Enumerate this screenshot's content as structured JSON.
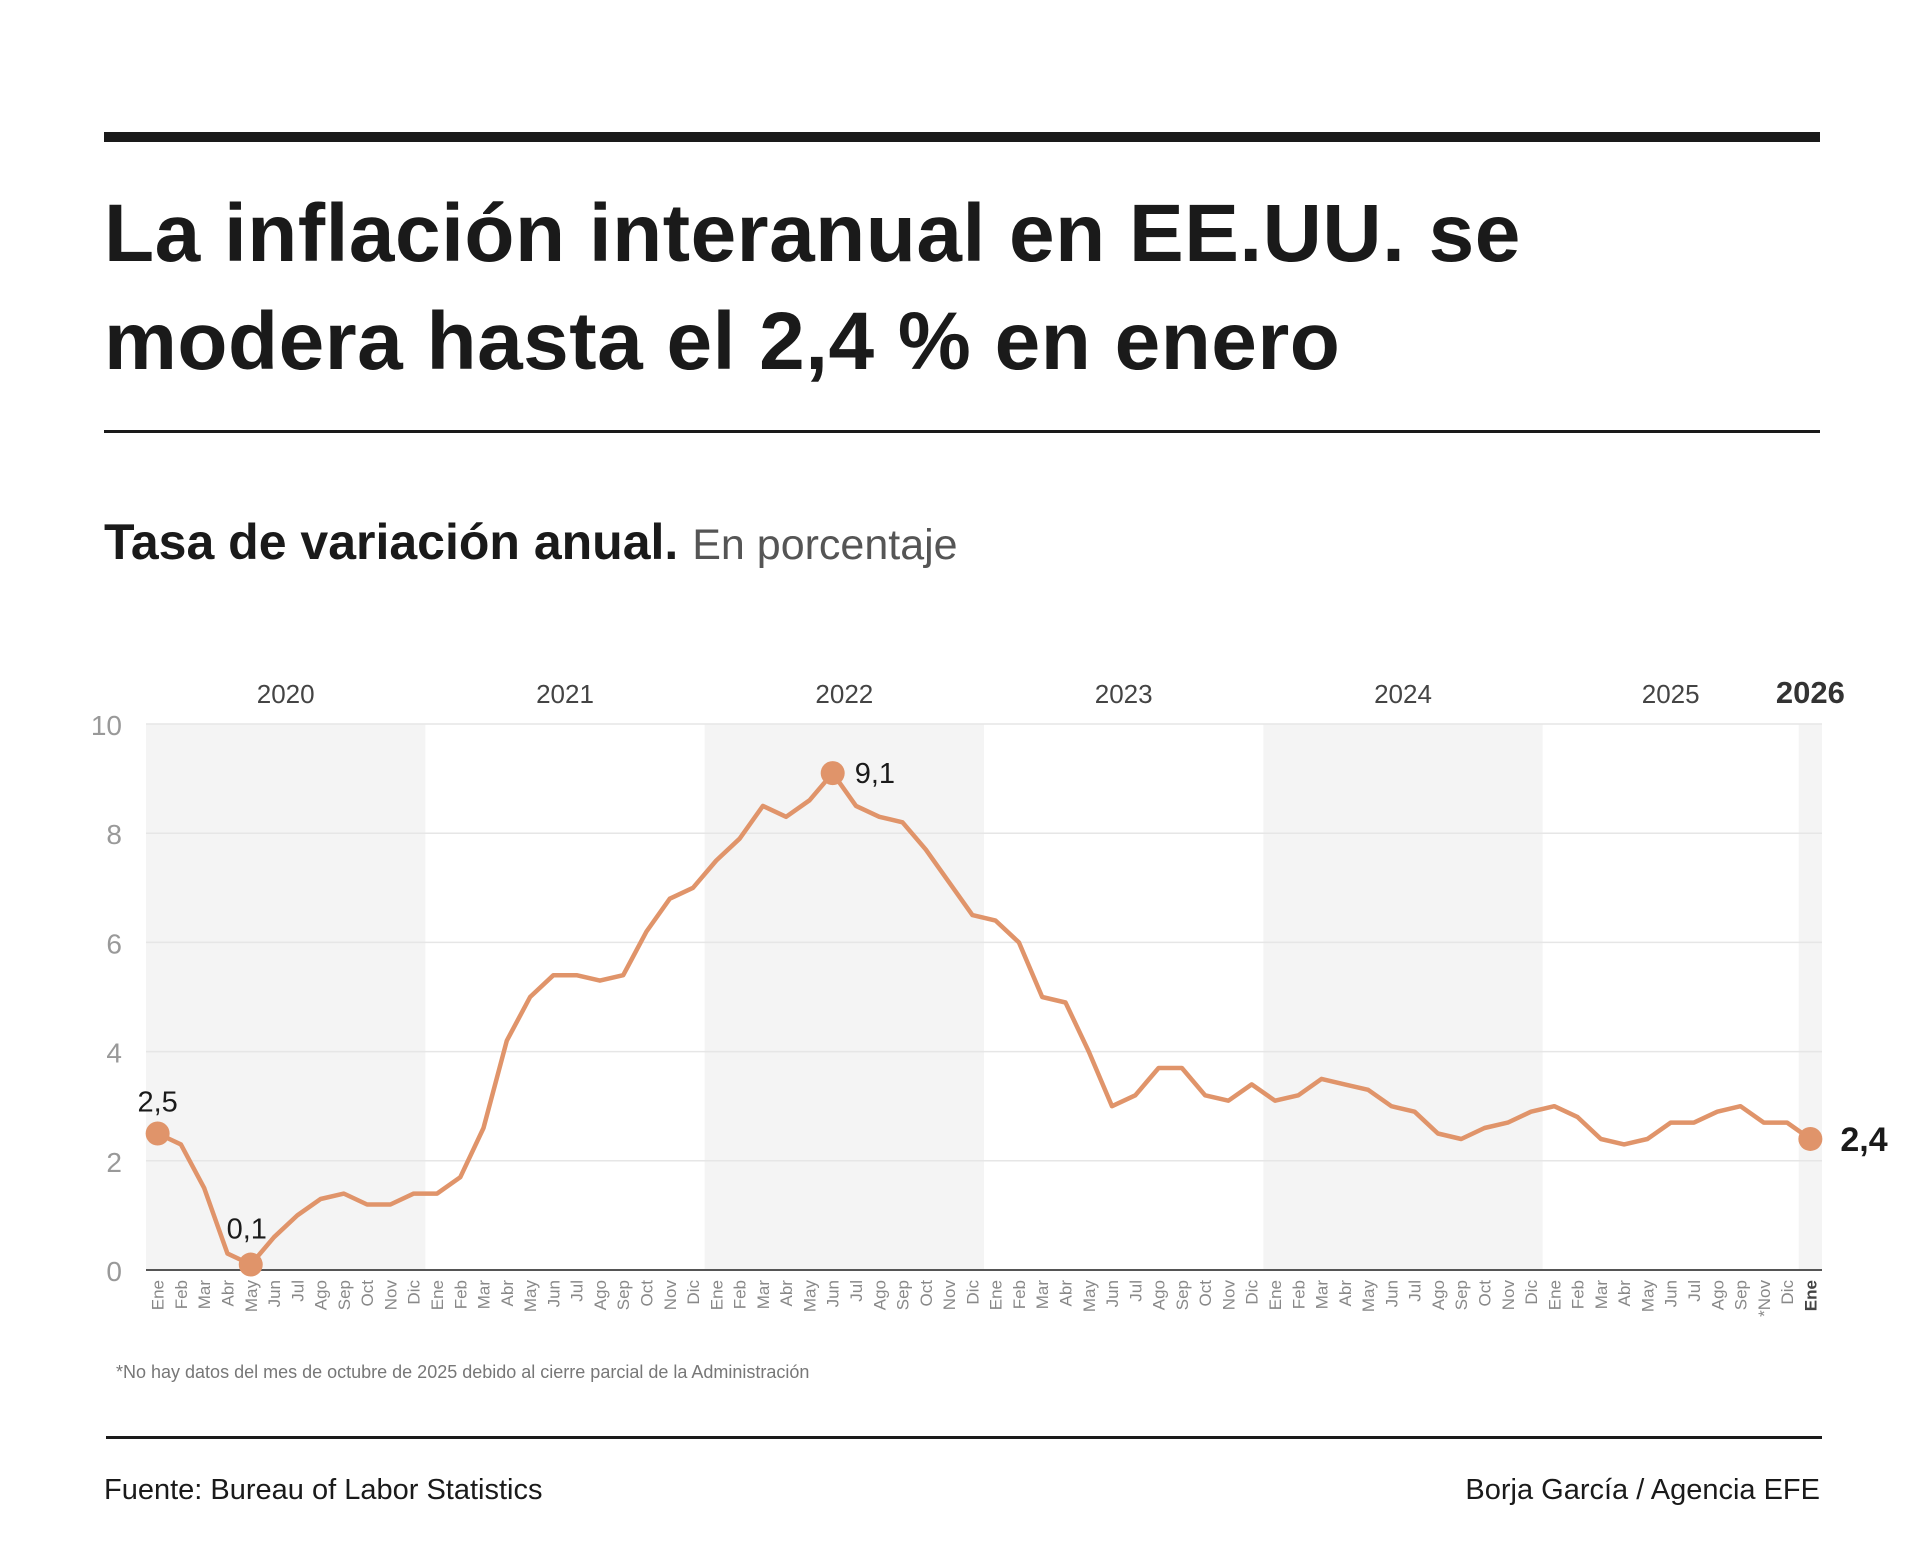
{
  "headline": "La inflación interanual en EE.UU. se modera hasta el 2,4 % en enero",
  "subtitle": {
    "bold": "Tasa de variación anual.",
    "light": "En porcentaje"
  },
  "note": "*No hay datos del mes de octubre de 2025 debido al cierre parcial de la Administración",
  "source": "Fuente: Bureau of Labor Statistics",
  "credit": "Borja García / Agencia EFE",
  "colors": {
    "line": "#e0946a",
    "band": "#f4f4f4",
    "text": "#1a1a1a",
    "axis": "#999999"
  },
  "chart_data": {
    "type": "line",
    "ylim": [
      0,
      10
    ],
    "yticks": [
      0,
      2,
      4,
      6,
      8,
      10
    ],
    "grid": true,
    "years": [
      {
        "label": "2020",
        "current": false
      },
      {
        "label": "2021",
        "current": false
      },
      {
        "label": "2022",
        "current": false
      },
      {
        "label": "2023",
        "current": false
      },
      {
        "label": "2024",
        "current": false
      },
      {
        "label": "2025",
        "current": false
      },
      {
        "label": "2026",
        "current": true
      }
    ],
    "x": [
      "Ene",
      "Feb",
      "Mar",
      "Abr",
      "May",
      "Jun",
      "Jul",
      "Ago",
      "Sep",
      "Oct",
      "Nov",
      "Dic",
      "Ene",
      "Feb",
      "Mar",
      "Abr",
      "May",
      "Jun",
      "Jul",
      "Ago",
      "Sep",
      "Oct",
      "Nov",
      "Dic",
      "Ene",
      "Feb",
      "Mar",
      "Abr",
      "May",
      "Jun",
      "Jul",
      "Ago",
      "Sep",
      "Oct",
      "Nov",
      "Dic",
      "Ene",
      "Feb",
      "Mar",
      "Abr",
      "May",
      "Jun",
      "Jul",
      "Ago",
      "Sep",
      "Oct",
      "Nov",
      "Dic",
      "Ene",
      "Feb",
      "Mar",
      "Abr",
      "May",
      "Jun",
      "Jul",
      "Ago",
      "Sep",
      "Oct",
      "Nov",
      "Dic",
      "Ene",
      "Feb",
      "Mar",
      "Abr",
      "May",
      "Jun",
      "Jul",
      "Ago",
      "Sep",
      "*Nov",
      "Dic",
      "Ene"
    ],
    "values": [
      2.5,
      2.3,
      1.5,
      0.3,
      0.1,
      0.6,
      1.0,
      1.3,
      1.4,
      1.2,
      1.2,
      1.4,
      1.4,
      1.7,
      2.6,
      4.2,
      5.0,
      5.4,
      5.4,
      5.3,
      5.4,
      6.2,
      6.8,
      7.0,
      7.5,
      7.9,
      8.5,
      8.3,
      8.6,
      9.1,
      8.5,
      8.3,
      8.2,
      7.7,
      7.1,
      6.5,
      6.4,
      6.0,
      5.0,
      4.9,
      4.0,
      3.0,
      3.2,
      3.7,
      3.7,
      3.2,
      3.1,
      3.4,
      3.1,
      3.2,
      3.5,
      3.4,
      3.3,
      3.0,
      2.9,
      2.5,
      2.4,
      2.6,
      2.7,
      2.9,
      3.0,
      2.8,
      2.4,
      2.3,
      2.4,
      2.7,
      2.7,
      2.9,
      3.0,
      2.7,
      2.7,
      2.4
    ],
    "labels": [
      {
        "index": 0,
        "text": "2,5",
        "bold": false
      },
      {
        "index": 4,
        "text": "0,1",
        "bold": false
      },
      {
        "index": 29,
        "text": "9,1",
        "bold": false
      },
      {
        "index": 71,
        "text": "2,4",
        "bold": true
      }
    ]
  }
}
